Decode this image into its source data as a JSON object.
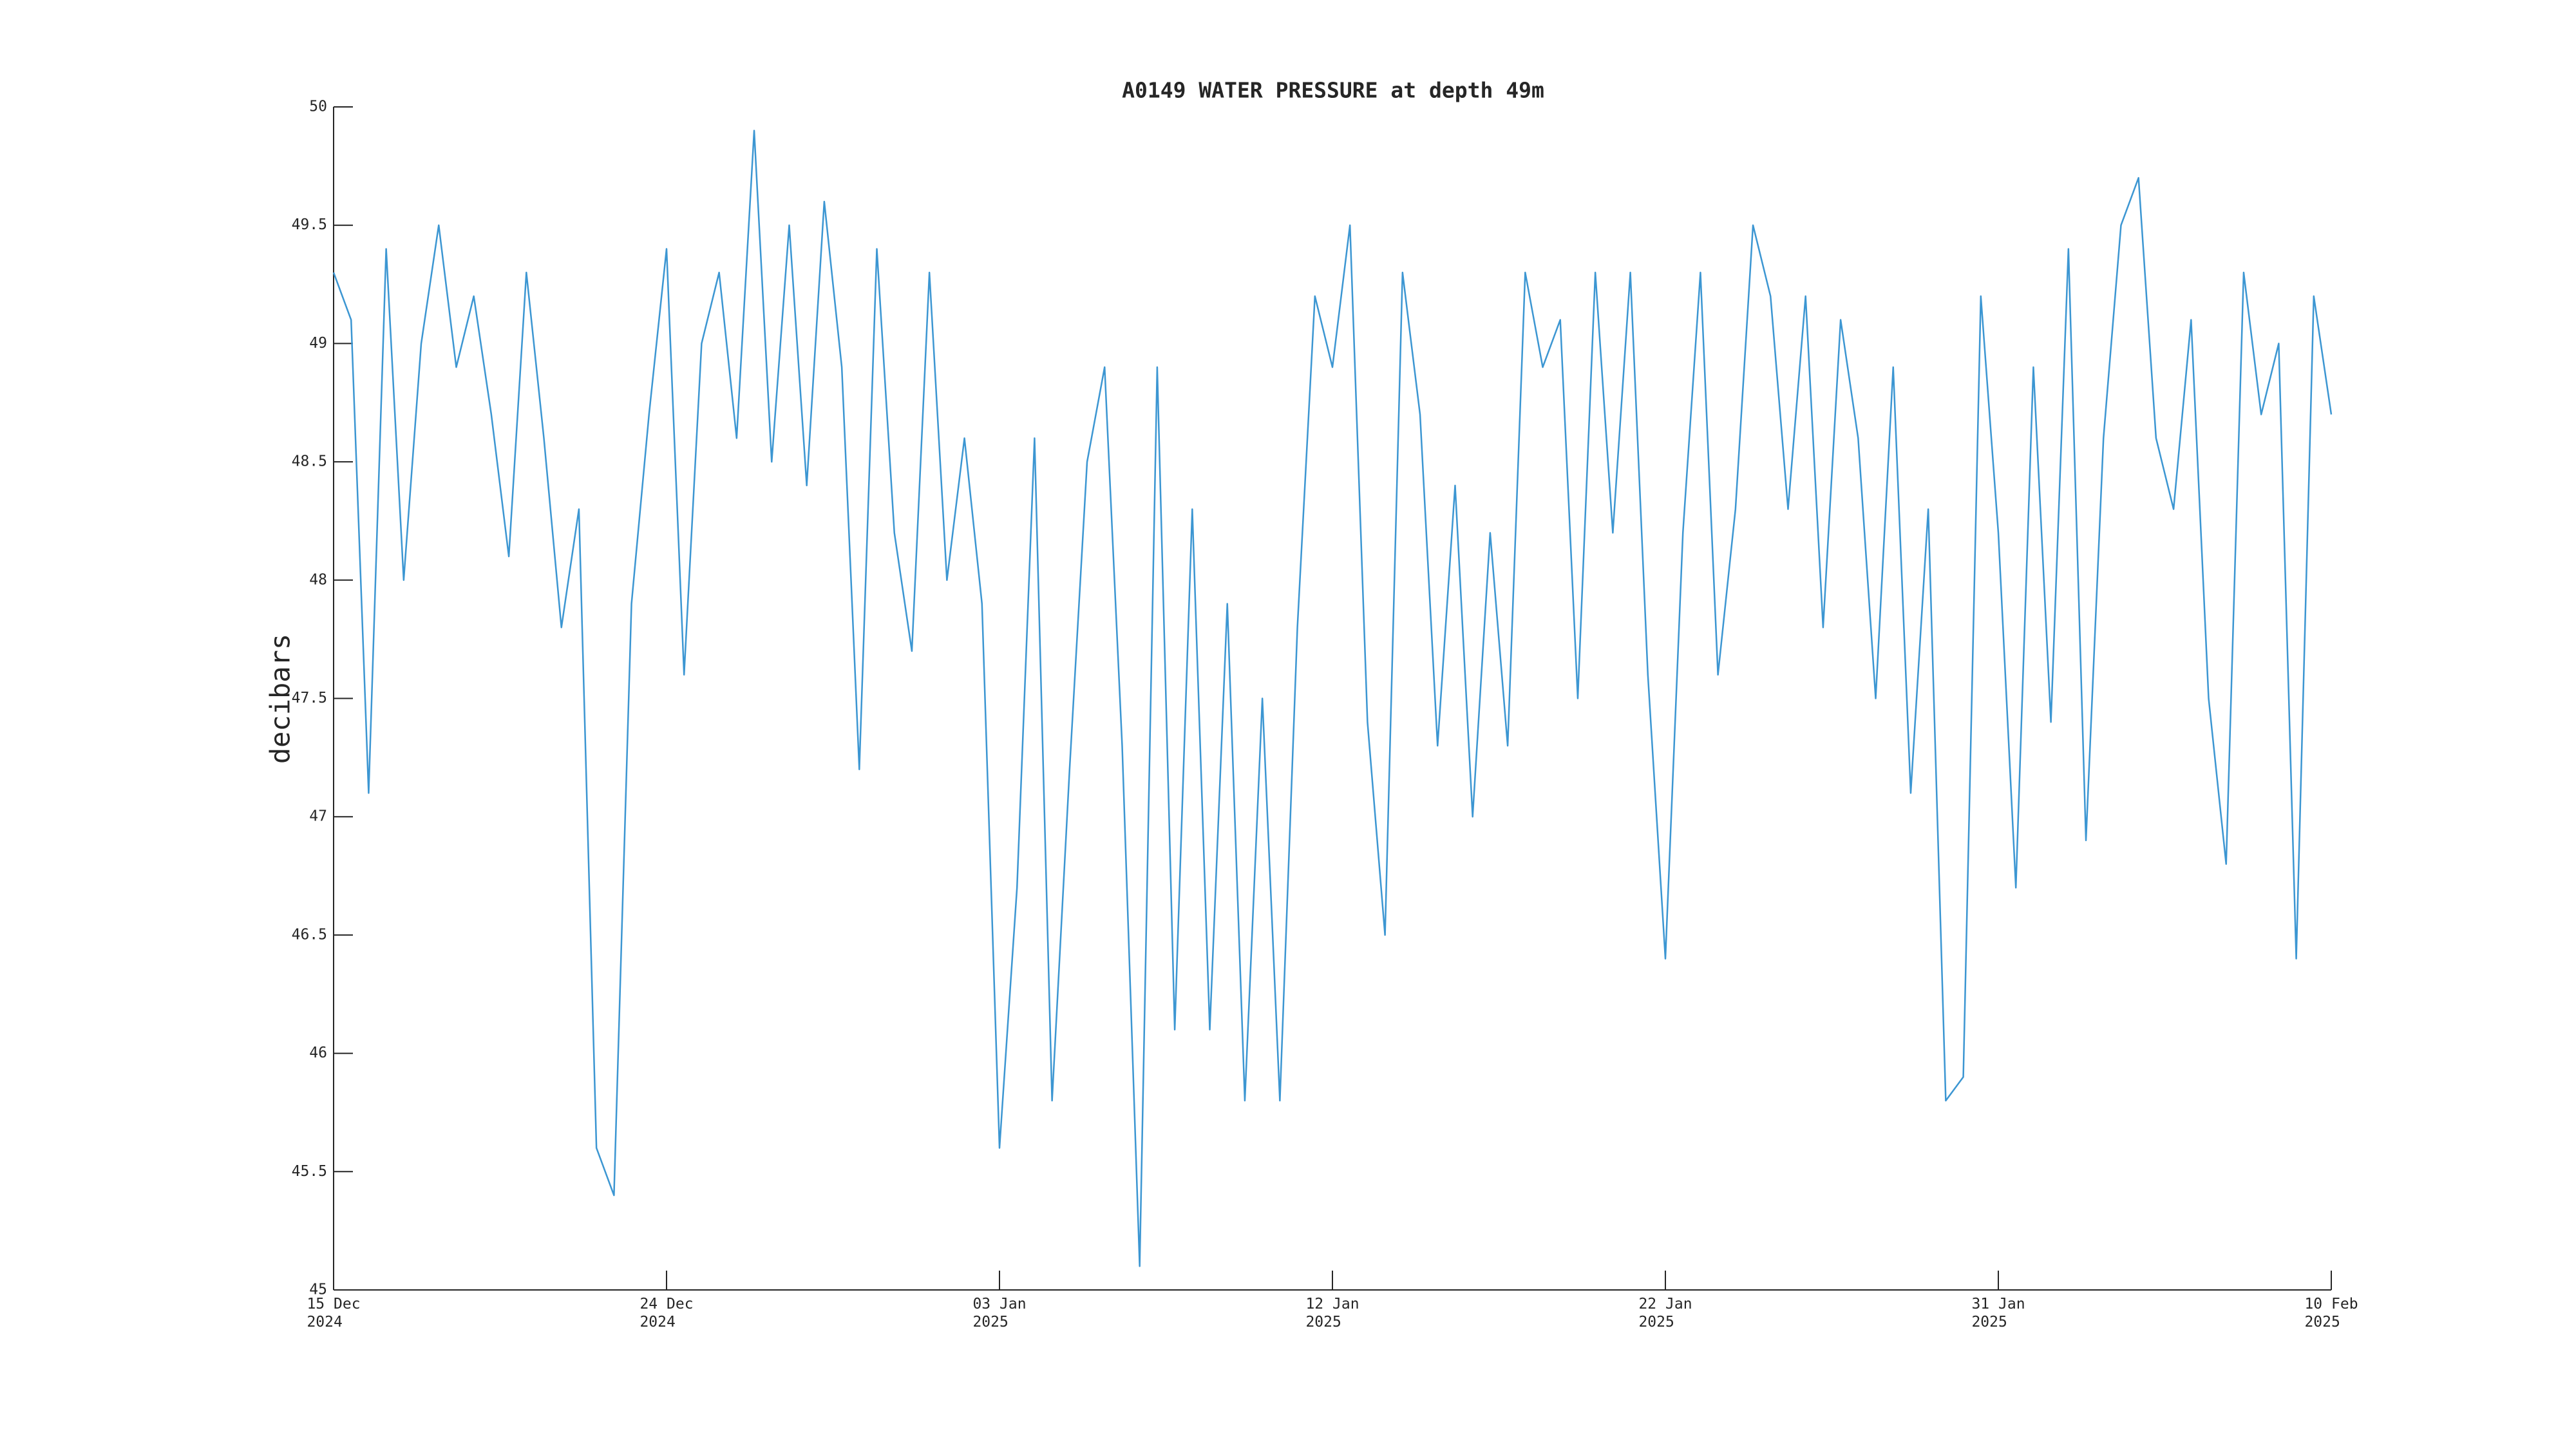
{
  "chart_data": {
    "type": "line",
    "title": "A0149 WATER PRESSURE at depth 49m",
    "y_label": "decibars",
    "color": "#3c96d2",
    "x": [
      "2024-12-15T00:00",
      "2024-12-15T12:00",
      "2024-12-16T00:00",
      "2024-12-16T12:00",
      "2024-12-17T00:00",
      "2024-12-17T12:00",
      "2024-12-18T00:00",
      "2024-12-18T12:00",
      "2024-12-19T00:00",
      "2024-12-19T12:00",
      "2024-12-20T00:00",
      "2024-12-20T12:00",
      "2024-12-21T00:00",
      "2024-12-21T12:00",
      "2024-12-22T00:00",
      "2024-12-22T12:00",
      "2024-12-23T00:00",
      "2024-12-23T12:00",
      "2024-12-24T00:00",
      "2024-12-24T12:00",
      "2024-12-25T00:00",
      "2024-12-25T12:00",
      "2024-12-26T00:00",
      "2024-12-26T12:00",
      "2024-12-27T00:00",
      "2024-12-27T12:00",
      "2024-12-28T00:00",
      "2024-12-28T12:00",
      "2024-12-29T00:00",
      "2024-12-29T12:00",
      "2024-12-30T00:00",
      "2024-12-30T12:00",
      "2024-12-31T00:00",
      "2024-12-31T12:00",
      "2025-01-01T00:00",
      "2025-01-01T12:00",
      "2025-01-02T00:00",
      "2025-01-02T12:00",
      "2025-01-03T00:00",
      "2025-01-03T12:00",
      "2025-01-04T00:00",
      "2025-01-04T12:00",
      "2025-01-05T00:00",
      "2025-01-05T12:00",
      "2025-01-06T00:00",
      "2025-01-06T12:00",
      "2025-01-07T00:00",
      "2025-01-07T12:00",
      "2025-01-08T00:00",
      "2025-01-08T12:00",
      "2025-01-09T00:00",
      "2025-01-09T12:00",
      "2025-01-10T00:00",
      "2025-01-10T12:00",
      "2025-01-11T00:00",
      "2025-01-11T12:00",
      "2025-01-12T00:00",
      "2025-01-12T12:00",
      "2025-01-13T00:00",
      "2025-01-13T12:00",
      "2025-01-14T00:00",
      "2025-01-14T12:00",
      "2025-01-15T00:00",
      "2025-01-15T12:00",
      "2025-01-16T00:00",
      "2025-01-16T12:00",
      "2025-01-17T00:00",
      "2025-01-17T12:00",
      "2025-01-18T00:00",
      "2025-01-18T12:00",
      "2025-01-19T00:00",
      "2025-01-19T12:00",
      "2025-01-20T00:00",
      "2025-01-20T12:00",
      "2025-01-21T00:00",
      "2025-01-21T12:00",
      "2025-01-22T00:00",
      "2025-01-22T12:00",
      "2025-01-23T00:00",
      "2025-01-23T12:00",
      "2025-01-24T00:00",
      "2025-01-24T12:00",
      "2025-01-25T00:00",
      "2025-01-25T12:00",
      "2025-01-26T00:00",
      "2025-01-26T12:00",
      "2025-01-27T00:00",
      "2025-01-27T12:00",
      "2025-01-28T00:00",
      "2025-01-28T12:00",
      "2025-01-29T00:00",
      "2025-01-29T12:00",
      "2025-01-30T00:00",
      "2025-01-30T12:00",
      "2025-01-31T00:00",
      "2025-01-31T12:00",
      "2025-02-01T00:00",
      "2025-02-01T12:00",
      "2025-02-02T00:00",
      "2025-02-02T12:00",
      "2025-02-03T00:00",
      "2025-02-03T12:00",
      "2025-02-04T00:00",
      "2025-02-04T12:00",
      "2025-02-05T00:00",
      "2025-02-05T12:00",
      "2025-02-06T00:00",
      "2025-02-06T12:00",
      "2025-02-07T00:00",
      "2025-02-07T12:00",
      "2025-02-08T00:00",
      "2025-02-08T12:00",
      "2025-02-09T00:00",
      "2025-02-09T12:00",
      "2025-02-10T00:00"
    ],
    "values": [
      49.3,
      49.1,
      47.1,
      49.4,
      48.0,
      49.0,
      49.5,
      48.9,
      49.2,
      48.7,
      48.1,
      49.3,
      48.6,
      47.8,
      48.3,
      45.6,
      45.4,
      47.9,
      48.7,
      49.4,
      47.6,
      49.0,
      49.3,
      48.6,
      49.9,
      48.5,
      49.5,
      48.4,
      49.6,
      48.9,
      47.2,
      49.4,
      48.2,
      47.7,
      49.3,
      48.0,
      48.6,
      47.9,
      45.6,
      46.7,
      48.6,
      45.8,
      47.2,
      48.5,
      48.9,
      47.3,
      45.1,
      48.9,
      46.1,
      48.3,
      46.1,
      47.9,
      45.8,
      47.5,
      45.8,
      47.8,
      49.2,
      48.9,
      49.5,
      47.4,
      46.5,
      49.3,
      48.7,
      47.3,
      48.4,
      47.0,
      48.2,
      47.3,
      49.3,
      48.9,
      49.1,
      47.5,
      49.3,
      48.2,
      49.3,
      47.6,
      46.4,
      48.2,
      49.3,
      47.6,
      48.3,
      49.5,
      49.2,
      48.3,
      49.2,
      47.8,
      49.1,
      48.6,
      47.5,
      48.9,
      47.1,
      48.3,
      45.8,
      45.9,
      49.2,
      48.2,
      46.7,
      48.9,
      47.4,
      49.4,
      46.9,
      48.6,
      49.5,
      49.7,
      48.6,
      48.3,
      49.1,
      47.5,
      46.8,
      49.3,
      48.7,
      49.0,
      46.4,
      49.2,
      48.7
    ],
    "xlim": [
      "2024-12-15T00:00",
      "2025-02-10T00:00"
    ],
    "xticks": [
      {
        "value": "2024-12-15T00:00",
        "label": "15 Dec\n2024"
      },
      {
        "value": "2024-12-24T12:00",
        "label": "24 Dec\n2024"
      },
      {
        "value": "2025-01-03T00:00",
        "label": "03 Jan\n2025"
      },
      {
        "value": "2025-01-12T12:00",
        "label": "12 Jan\n2025"
      },
      {
        "value": "2025-01-22T00:00",
        "label": "22 Jan\n2025"
      },
      {
        "value": "2025-01-31T12:00",
        "label": "31 Jan\n2025"
      },
      {
        "value": "2025-02-10T00:00",
        "label": "10 Feb\n2025"
      }
    ],
    "ylim": [
      45,
      50
    ],
    "yticks": [
      45,
      45.5,
      46,
      46.5,
      47,
      47.5,
      48,
      48.5,
      49,
      49.5,
      50
    ]
  }
}
